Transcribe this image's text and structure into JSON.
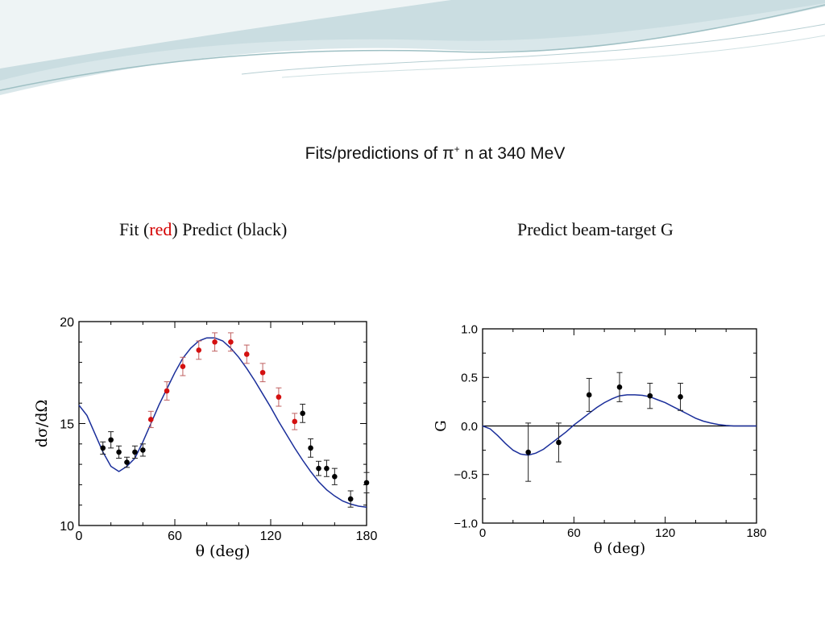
{
  "slide": {
    "title_prefix": "Fits/predictions of π",
    "title_sup": "+",
    "title_suffix": " n at 340 MeV",
    "left_caption_a": "Fit (",
    "left_caption_red": "red",
    "left_caption_b": ")  Predict (black)",
    "right_caption": "Predict beam-target G"
  },
  "colors": {
    "curve": "#1a2e9a",
    "fit_points": "#d41010",
    "predict_points": "#000000",
    "deco": "#b9d3d6"
  },
  "chart_data": [
    {
      "type": "scatter",
      "ylabel": "dσ/dΩ",
      "xlabel": "θ (deg)",
      "xlim": [
        0,
        180
      ],
      "ylim": [
        10,
        20
      ],
      "xticks": [
        "0",
        "60",
        "120",
        "180"
      ],
      "yticks": [
        "10",
        "15",
        "20"
      ],
      "curve": {
        "x": [
          0,
          5,
          10,
          15,
          20,
          25,
          30,
          35,
          40,
          45,
          50,
          55,
          60,
          65,
          70,
          75,
          80,
          85,
          90,
          95,
          100,
          105,
          110,
          115,
          120,
          125,
          130,
          135,
          140,
          145,
          150,
          155,
          160,
          165,
          170,
          175,
          180
        ],
        "y": [
          15.9,
          15.4,
          14.5,
          13.6,
          12.9,
          12.65,
          12.9,
          13.3,
          14.1,
          15.0,
          15.9,
          16.7,
          17.5,
          18.2,
          18.7,
          19.05,
          19.2,
          19.2,
          19.05,
          18.7,
          18.25,
          17.7,
          17.1,
          16.45,
          15.8,
          15.1,
          14.45,
          13.8,
          13.2,
          12.65,
          12.15,
          11.75,
          11.45,
          11.2,
          11.05,
          10.95,
          10.9
        ]
      },
      "fit_points": {
        "x": [
          45,
          55,
          65,
          75,
          85,
          95,
          105,
          115,
          125,
          135
        ],
        "y": [
          15.2,
          16.6,
          17.8,
          18.6,
          19.0,
          19.0,
          18.4,
          17.5,
          16.3,
          15.1
        ],
        "err": [
          0.4,
          0.45,
          0.45,
          0.45,
          0.45,
          0.45,
          0.45,
          0.45,
          0.45,
          0.4
        ]
      },
      "predict_points": {
        "x": [
          15,
          20,
          25,
          30,
          35,
          40,
          140,
          145,
          150,
          155,
          160,
          170,
          180
        ],
        "y": [
          13.8,
          14.2,
          13.6,
          13.1,
          13.6,
          13.7,
          15.5,
          13.8,
          12.8,
          12.8,
          12.4,
          11.3,
          12.1
        ],
        "err": [
          0.3,
          0.4,
          0.3,
          0.25,
          0.3,
          0.3,
          0.45,
          0.45,
          0.35,
          0.4,
          0.4,
          0.4,
          0.5
        ]
      }
    },
    {
      "type": "scatter",
      "ylabel": "G",
      "xlabel": "θ (deg)",
      "xlim": [
        0,
        180
      ],
      "ylim": [
        -1.0,
        1.0
      ],
      "xticks": [
        "0",
        "60",
        "120",
        "180"
      ],
      "yticks": [
        "−1.0",
        "−0.5",
        "0.0",
        "0.5",
        "1.0"
      ],
      "ytick_values": [
        -1.0,
        -0.5,
        0.0,
        0.5,
        1.0
      ],
      "curve": {
        "x": [
          0,
          5,
          10,
          15,
          20,
          25,
          30,
          35,
          40,
          45,
          50,
          55,
          60,
          65,
          70,
          75,
          80,
          85,
          90,
          95,
          100,
          105,
          110,
          115,
          120,
          125,
          130,
          135,
          140,
          145,
          150,
          155,
          160,
          165,
          170,
          175,
          180
        ],
        "y": [
          0.0,
          -0.03,
          -0.1,
          -0.18,
          -0.25,
          -0.29,
          -0.3,
          -0.28,
          -0.24,
          -0.18,
          -0.12,
          -0.06,
          0.01,
          0.07,
          0.13,
          0.19,
          0.24,
          0.28,
          0.31,
          0.32,
          0.32,
          0.315,
          0.3,
          0.27,
          0.24,
          0.2,
          0.16,
          0.12,
          0.08,
          0.05,
          0.03,
          0.015,
          0.005,
          0.0,
          0.0,
          0.0,
          0.0
        ]
      },
      "predict_points": {
        "x": [
          30,
          50,
          70,
          90,
          110,
          130
        ],
        "y": [
          -0.27,
          -0.17,
          0.32,
          0.4,
          0.31,
          0.3
        ],
        "err": [
          0.3,
          0.2,
          0.17,
          0.15,
          0.13,
          0.14
        ]
      }
    }
  ]
}
